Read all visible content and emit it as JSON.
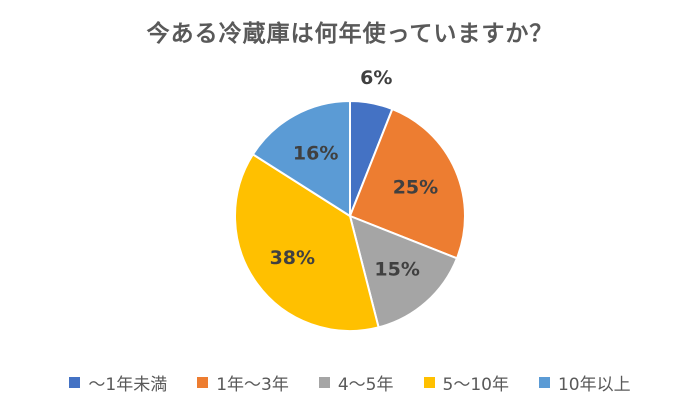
{
  "chart_data": {
    "type": "pie",
    "title": "今ある冷蔵庫は何年使っていますか？",
    "categories": [
      "～1年未満",
      "1年～3年",
      "4～5年",
      "5～10年",
      "10年以上"
    ],
    "values": [
      6,
      25,
      15,
      38,
      16
    ],
    "labels": [
      "6%",
      "25%",
      "15%",
      "38%",
      "16%"
    ],
    "colors": [
      "#4472C4",
      "#ED7D31",
      "#A5A5A5",
      "#FFC000",
      "#5B9BD5"
    ],
    "legend_position": "bottom",
    "start_angle": "12 o'clock",
    "direction": "clockwise"
  }
}
